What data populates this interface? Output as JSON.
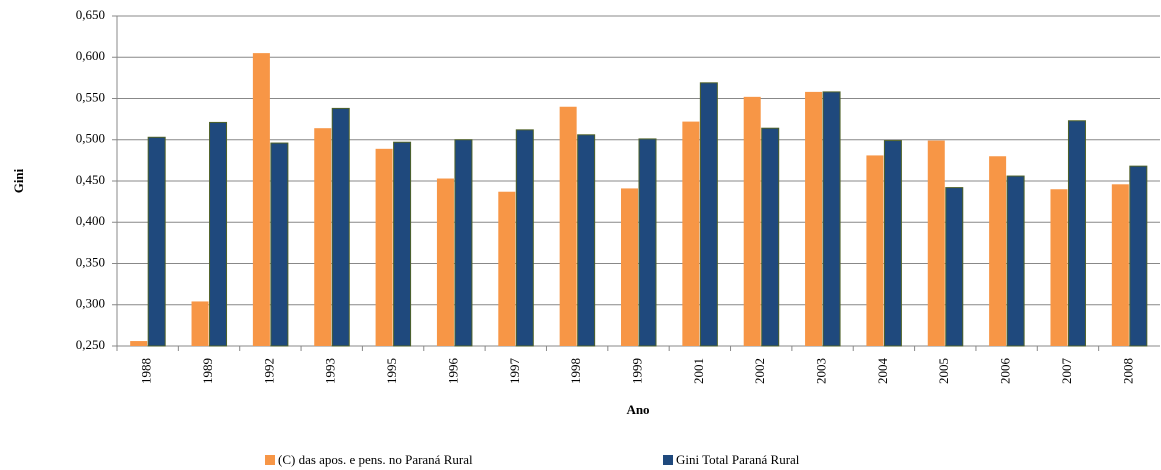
{
  "chart_data": {
    "type": "bar",
    "xlabel": "Ano",
    "ylabel": "Gini",
    "categories": [
      "1988",
      "1989",
      "1992",
      "1993",
      "1995",
      "1996",
      "1997",
      "1998",
      "1999",
      "2001",
      "2002",
      "2003",
      "2004",
      "2005",
      "2006",
      "2007",
      "2008"
    ],
    "series": [
      {
        "name": "(C) das apos. e pens. no Paraná Rural",
        "color": "#f79646",
        "values": [
          0.256,
          0.304,
          0.605,
          0.514,
          0.489,
          0.453,
          0.437,
          0.54,
          0.441,
          0.522,
          0.552,
          0.558,
          0.481,
          0.499,
          0.48,
          0.44,
          0.446
        ]
      },
      {
        "name": "Gini Total Paraná Rural",
        "color": "#1f497d",
        "values": [
          0.503,
          0.521,
          0.496,
          0.538,
          0.497,
          0.5,
          0.512,
          0.506,
          0.501,
          0.569,
          0.514,
          0.558,
          0.499,
          0.442,
          0.456,
          0.523,
          0.468
        ]
      }
    ],
    "ylim": [
      0.25,
      0.65
    ],
    "yticks": [
      {
        "value": 0.25,
        "label": "0,250"
      },
      {
        "value": 0.3,
        "label": "0,300"
      },
      {
        "value": 0.35,
        "label": "0,350"
      },
      {
        "value": 0.4,
        "label": "0,400"
      },
      {
        "value": 0.45,
        "label": "0,450"
      },
      {
        "value": 0.5,
        "label": "0,500"
      },
      {
        "value": 0.55,
        "label": "0,550"
      },
      {
        "value": 0.6,
        "label": "0,600"
      },
      {
        "value": 0.65,
        "label": "0,650"
      }
    ],
    "grid": true,
    "legend": "bottom"
  }
}
